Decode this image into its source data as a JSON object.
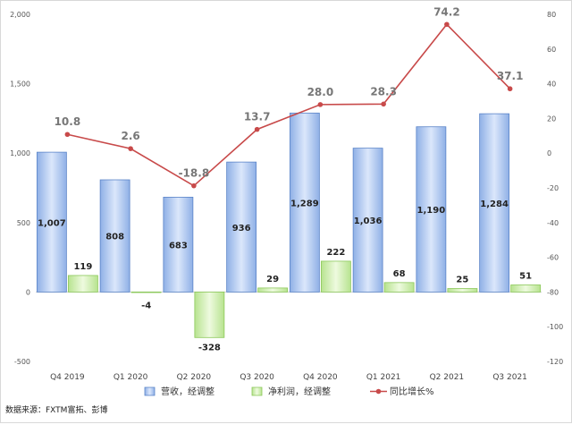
{
  "chart_data": {
    "type": "bar",
    "categories": [
      "Q4 2019",
      "Q1 2020",
      "Q2 2020",
      "Q3 2020",
      "Q4 2020",
      "Q1 2021",
      "Q2 2021",
      "Q3 2021"
    ],
    "series": [
      {
        "name": "营收，经调整",
        "type": "bar",
        "axis": "left",
        "color": "#a9c4ee",
        "values": [
          1007,
          808,
          683,
          936,
          1289,
          1036,
          1190,
          1284
        ]
      },
      {
        "name": "净利润，经调整",
        "type": "bar",
        "axis": "left",
        "color": "#cdeeb0",
        "values": [
          119,
          -4,
          -328,
          29,
          222,
          68,
          25,
          51
        ]
      },
      {
        "name": "同比增长%",
        "type": "line",
        "axis": "right",
        "color": "#c84a4a",
        "values": [
          10.8,
          2.6,
          -18.8,
          13.7,
          28.0,
          28.3,
          74.2,
          37.1
        ]
      }
    ],
    "data_labels": {
      "revenue": [
        "1,007",
        "808",
        "683",
        "936",
        "1,289",
        "1,036",
        "1,190",
        "1,284"
      ],
      "profit": [
        "119",
        "-4",
        "-328",
        "29",
        "222",
        "68",
        "25",
        "51"
      ],
      "growth": [
        "10.8",
        "2.6",
        "-18.8",
        "13.7",
        "28.0",
        "28.3",
        "74.2",
        "37.1"
      ]
    },
    "y_left": {
      "min": -500,
      "max": 2000,
      "ticks": [
        -500,
        0,
        500,
        1000,
        1500,
        2000
      ],
      "tick_labels": [
        "-500",
        "0",
        "500",
        "1,000",
        "1,500",
        "2,000"
      ]
    },
    "y_right": {
      "min": -120,
      "max": 80,
      "ticks": [
        -120,
        -100,
        -80,
        -60,
        -40,
        -20,
        0,
        20,
        40,
        60,
        80
      ],
      "tick_labels": [
        "-120",
        "-100",
        "-80",
        "-60",
        "-40",
        "-20",
        "0",
        "20",
        "40",
        "60",
        "80"
      ]
    },
    "grid": false,
    "legend": {
      "position": "bottom"
    },
    "source": "数据来源：FXTM富拓、彭博"
  }
}
